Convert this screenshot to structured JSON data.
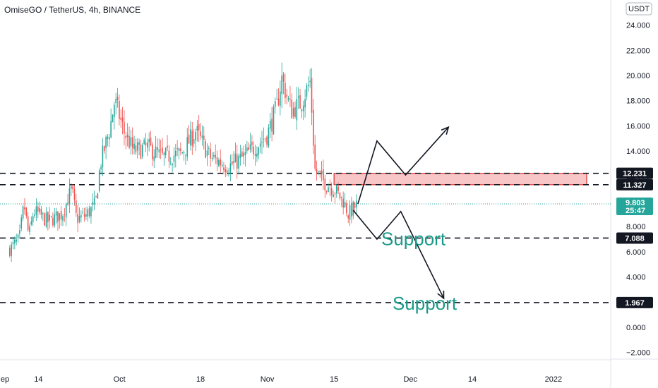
{
  "header": {
    "title": "OmiseGO / TetherUS, 4h, BINANCE",
    "currency_button": "USDT"
  },
  "colors": {
    "up": "#26a69a",
    "down": "#ef5350",
    "last_price": "#26a69a",
    "zone_fill": "#f8c6c6",
    "zone_stroke": "#e03030",
    "label_bg": "#131722",
    "support_text": "#1a9a8a"
  },
  "chart_data": {
    "type": "candlestick",
    "symbol": "OmiseGO / TetherUS",
    "interval": "4h",
    "exchange": "BINANCE",
    "y_axis": {
      "ticks": [
        "24.000",
        "22.000",
        "20.000",
        "18.000",
        "16.000",
        "14.000",
        "12.000",
        "10.000",
        "8.000",
        "6.000",
        "4.000",
        "2.000",
        "0.000",
        "−2.000"
      ],
      "range": [
        -2.6,
        25.5
      ]
    },
    "x_axis": {
      "ticks": [
        "ep",
        "14",
        "Oct",
        "18",
        "Nov",
        "15",
        "Dec",
        "14",
        "2022"
      ]
    },
    "price_path": [
      [
        "Sep 8",
        6.2
      ],
      [
        "Sep 10",
        7.0
      ],
      [
        "Sep 11",
        9.8
      ],
      [
        "Sep 12",
        7.2
      ],
      [
        "Sep 13",
        9.2
      ],
      [
        "Sep 14",
        9.0
      ],
      [
        "Sep 16",
        8.4
      ],
      [
        "Sep 19",
        9.0
      ],
      [
        "Sep 21",
        11.0
      ],
      [
        "Sep 22",
        8.6
      ],
      [
        "Sep 24",
        8.9
      ],
      [
        "Sep 26",
        9.8
      ],
      [
        "Sep 27",
        13.0
      ],
      [
        "Sep 29",
        15.8
      ],
      [
        "Sep 30",
        18.0
      ],
      [
        "Oct 2",
        15.5
      ],
      [
        "Oct 4",
        14.0
      ],
      [
        "Oct 7",
        14.3
      ],
      [
        "Oct 10",
        13.5
      ],
      [
        "Oct 14",
        13.8
      ],
      [
        "Oct 17",
        15.6
      ],
      [
        "Oct 20",
        13.5
      ],
      [
        "Oct 24",
        12.8
      ],
      [
        "Oct 27",
        13.5
      ],
      [
        "Oct 30",
        14.5
      ],
      [
        "Nov 1",
        15.3
      ],
      [
        "Nov 3",
        17.5
      ],
      [
        "Nov 4",
        19.8
      ],
      [
        "Nov 6",
        17.2
      ],
      [
        "Nov 8",
        17.8
      ],
      [
        "Nov 10",
        19.5
      ],
      [
        "Nov 11",
        12.5
      ],
      [
        "Nov 13",
        11.5
      ],
      [
        "Nov 15",
        11.0
      ],
      [
        "Nov 17",
        10.0
      ],
      [
        "Nov 18",
        9.0
      ],
      [
        "Nov 20",
        9.8
      ]
    ],
    "last_price": {
      "value": "9.803",
      "countdown": "25:47"
    },
    "levels": [
      {
        "value": "12.231",
        "price": 12.231
      },
      {
        "value": "11.327",
        "price": 11.327
      },
      {
        "value": "7.088",
        "price": 7.088
      },
      {
        "value": "1.967",
        "price": 1.967
      }
    ],
    "resistance_zone": {
      "from": 11.327,
      "to": 12.231,
      "start": "Nov 15"
    },
    "projections": [
      {
        "name": "bullish",
        "points": [
          [
            "Nov 20",
            9.8
          ],
          [
            "Nov 24",
            14.8
          ],
          [
            "Nov 30",
            12.1
          ],
          [
            "Dec 9",
            15.9
          ]
        ]
      },
      {
        "name": "bearish",
        "points": [
          [
            "Nov 19",
            9.3
          ],
          [
            "Nov 24",
            7.0
          ],
          [
            "Nov 29",
            9.2
          ],
          [
            "Dec 8",
            2.3
          ]
        ]
      }
    ],
    "annotations": [
      {
        "text": "Support",
        "near_level": 7.088
      },
      {
        "text": "Support",
        "near_level": 1.967
      }
    ]
  }
}
